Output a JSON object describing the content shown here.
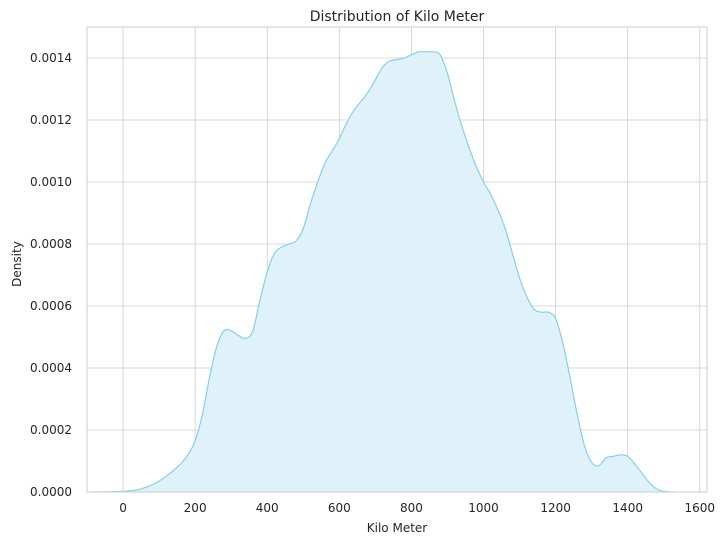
{
  "chart_data": {
    "type": "area",
    "title": "Distribution of Kilo Meter",
    "xlabel": "Kilo Meter",
    "ylabel": "Density",
    "xlim": [
      -100,
      1620
    ],
    "ylim": [
      0,
      0.0015
    ],
    "xticks": [
      0,
      200,
      400,
      600,
      800,
      1000,
      1200,
      1400,
      1600
    ],
    "yticks": [
      0.0,
      0.0002,
      0.0004,
      0.0006,
      0.0008,
      0.001,
      0.0012,
      0.0014
    ],
    "xtick_labels": [
      "0",
      "200",
      "400",
      "600",
      "800",
      "1000",
      "1200",
      "1400",
      "1600"
    ],
    "ytick_labels": [
      "0.0000",
      "0.0002",
      "0.0004",
      "0.0006",
      "0.0008",
      "0.0010",
      "0.0012",
      "0.0014"
    ],
    "grid": true,
    "series": [
      {
        "line_color": "#87ceeb",
        "fill_color": "#dff1f9",
        "x": [
          -80,
          0,
          50,
          100,
          150,
          180,
          200,
          220,
          240,
          260,
          280,
          300,
          320,
          340,
          360,
          380,
          400,
          420,
          440,
          460,
          480,
          500,
          520,
          540,
          560,
          580,
          600,
          620,
          640,
          660,
          680,
          700,
          720,
          740,
          760,
          780,
          800,
          820,
          840,
          860,
          880,
          900,
          920,
          940,
          960,
          980,
          1000,
          1020,
          1040,
          1060,
          1080,
          1100,
          1120,
          1140,
          1160,
          1180,
          1200,
          1220,
          1240,
          1260,
          1280,
          1300,
          1320,
          1340,
          1360,
          1380,
          1400,
          1420,
          1440,
          1460,
          1480,
          1500,
          1530
        ],
        "y": [
          0.0,
          2e-06,
          1e-05,
          3.5e-05,
          8e-05,
          0.00012,
          0.000165,
          0.00025,
          0.00037,
          0.00047,
          0.00052,
          0.00052,
          0.000505,
          0.000495,
          0.00052,
          0.00062,
          0.00071,
          0.00077,
          0.00079,
          0.0008,
          0.00081,
          0.00085,
          0.00093,
          0.001,
          0.00106,
          0.0011,
          0.00114,
          0.00119,
          0.00123,
          0.00126,
          0.00129,
          0.00133,
          0.00137,
          0.00139,
          0.001395,
          0.0014,
          0.00141,
          0.00142,
          0.00142,
          0.00142,
          0.00141,
          0.00135,
          0.00126,
          0.00118,
          0.00111,
          0.00105,
          0.001,
          0.00096,
          0.00091,
          0.00085,
          0.00077,
          0.00069,
          0.00063,
          0.00059,
          0.00058,
          0.00058,
          0.00056,
          0.00048,
          0.00037,
          0.00025,
          0.00015,
          9.5e-05,
          8.5e-05,
          0.00011,
          0.000115,
          0.00012,
          0.000115,
          9e-05,
          6e-05,
          3e-05,
          1e-05,
          2e-06,
          0.0
        ]
      }
    ]
  }
}
